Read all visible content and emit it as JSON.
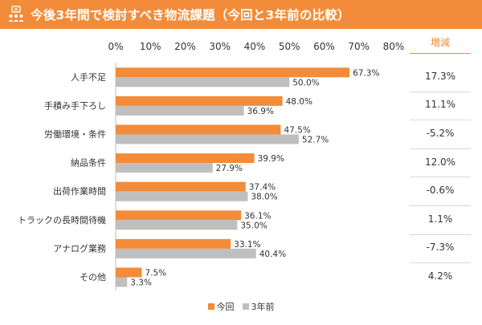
{
  "header": {
    "title": "今後3年間で検討すべき物流課題（今回と3年前の比較）",
    "background_color": "#f28c3a",
    "icon": "people-presentation-icon"
  },
  "delta_header": "増減",
  "deltas": [
    "17.3%",
    "11.1%",
    "-5.2%",
    "12.0%",
    "-0.6%",
    "1.1%",
    "-7.3%",
    "4.2%"
  ],
  "chart_data": {
    "type": "bar",
    "orientation": "horizontal",
    "categories": [
      "人手不足",
      "手積み手下ろし",
      "労働環境・条件",
      "納品条件",
      "出荷作業時間",
      "トラックの長時間待機",
      "アナログ業務",
      "その他"
    ],
    "series": [
      {
        "name": "今回",
        "color": "#f28c3a",
        "values": [
          67.3,
          48.0,
          47.5,
          39.9,
          37.4,
          36.1,
          33.1,
          7.5
        ]
      },
      {
        "name": "3年前",
        "color": "#bfbfbf",
        "values": [
          50.0,
          36.9,
          52.7,
          27.9,
          38.0,
          35.0,
          40.4,
          3.3
        ]
      }
    ],
    "xticks": [
      "0%",
      "10%",
      "20%",
      "30%",
      "40%",
      "50%",
      "60%",
      "70%",
      "80%"
    ],
    "xlim": [
      0,
      80
    ],
    "value_suffix": "%",
    "grid": false,
    "legend_position": "bottom"
  }
}
